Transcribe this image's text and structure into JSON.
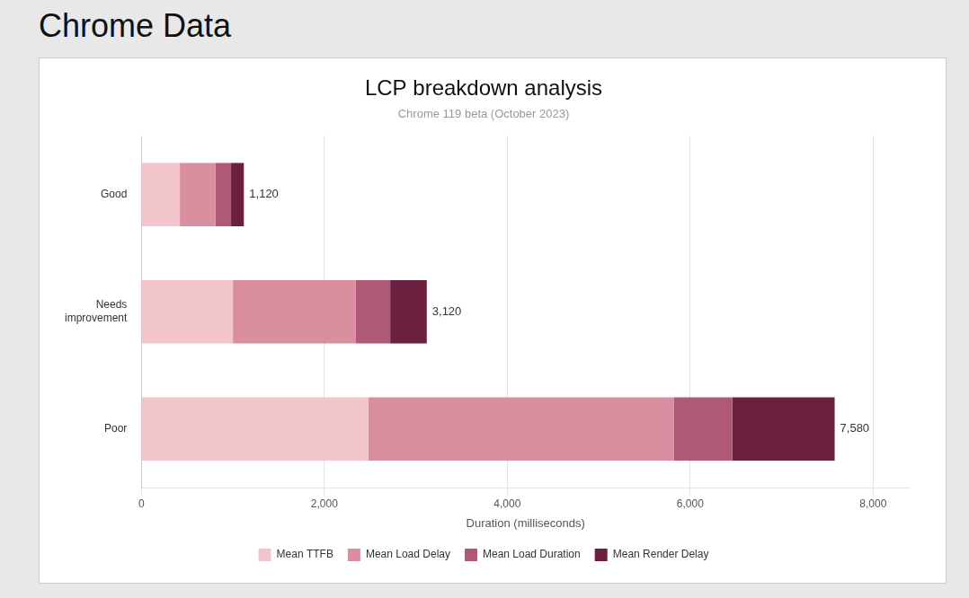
{
  "chart_data": {
    "type": "bar",
    "orientation": "horizontal",
    "stacked": true,
    "outer_title": "Chrome Data",
    "title": "LCP breakdown analysis",
    "subtitle": "Chrome 119 beta (October 2023)",
    "xlabel": "Duration (milliseconds)",
    "categories": [
      "Poor",
      "Needs\nimprovement",
      "Good"
    ],
    "series": [
      {
        "name": "Mean TTFB",
        "color": "#f2c4cc",
        "values": [
          2480,
          1000,
          420
        ]
      },
      {
        "name": "Mean Load Delay",
        "color": "#d98fa0",
        "values": [
          3340,
          1340,
          390
        ]
      },
      {
        "name": "Mean Load Duration",
        "color": "#b05878",
        "values": [
          640,
          380,
          170
        ]
      },
      {
        "name": "Mean Render Delay",
        "color": "#6b2040",
        "values": [
          1120,
          400,
          140
        ]
      }
    ],
    "totals": [
      {
        "value": 7580,
        "label": "7,580"
      },
      {
        "value": 3120,
        "label": "3,120"
      },
      {
        "value": 1120,
        "label": "1,120"
      }
    ],
    "xlim": [
      0,
      8400
    ],
    "xticks": [
      0,
      {
        "value": 2000,
        "label": "2,000"
      },
      {
        "value": 4000,
        "label": "4,000"
      },
      {
        "value": 6000,
        "label": "6,000"
      },
      {
        "value": 8000,
        "label": "8,000"
      }
    ],
    "grid": "x",
    "legend": "bottom"
  }
}
